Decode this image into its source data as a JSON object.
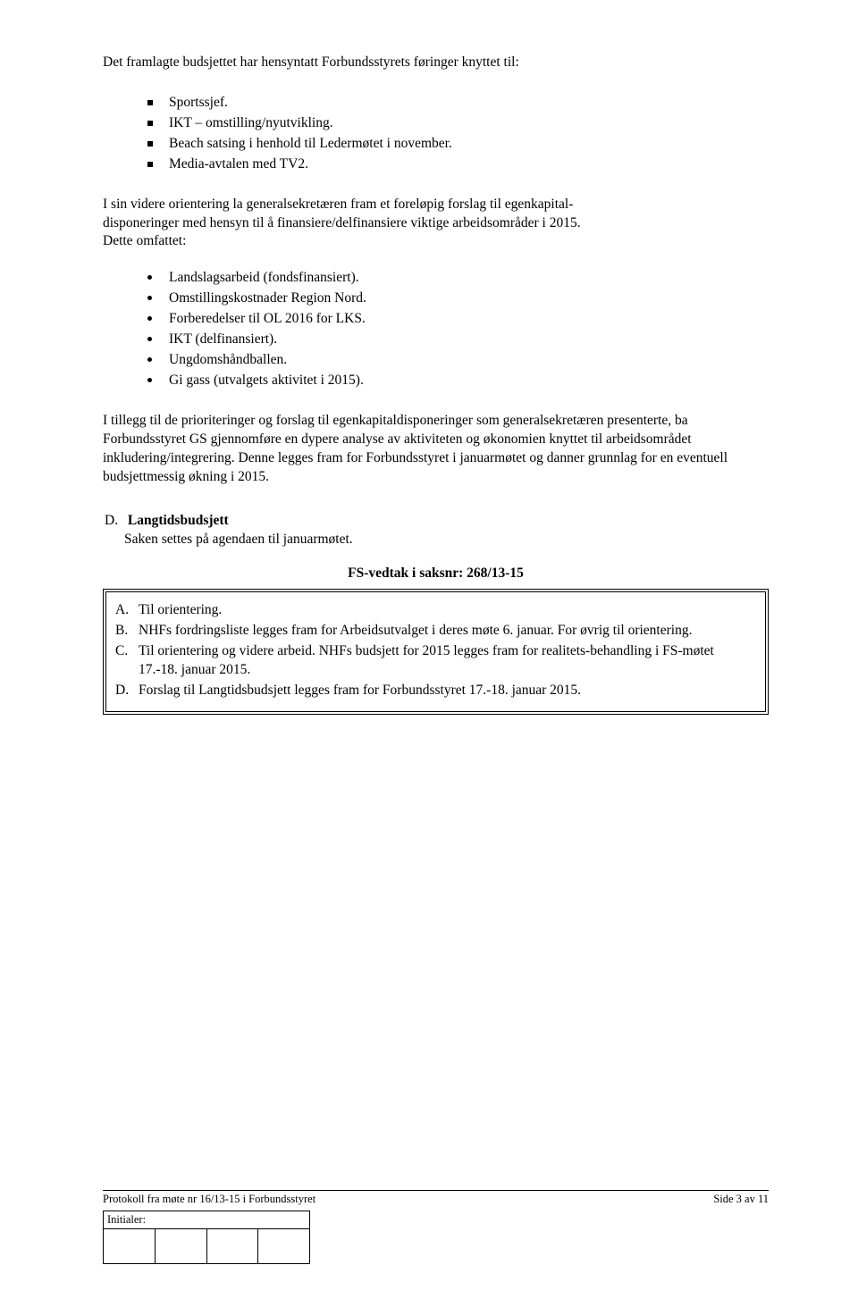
{
  "intro": "Det framlagte budsjettet har hensyntatt Forbundsstyrets føringer knyttet til:",
  "square_items": [
    "Sportssjef.",
    "IKT – omstilling/nyutvikling.",
    "Beach satsing i henhold til Ledermøtet i november.",
    "Media-avtalen med TV2."
  ],
  "para2a": "I sin videre orientering la generalsekretæren fram et foreløpig forslag til egenkapital-",
  "para2b": "disponeringer med hensyn til å finansiere/delfinansiere viktige arbeidsområder i 2015.",
  "para2c": "Dette omfattet:",
  "disc_items": [
    "Landslagsarbeid (fondsfinansiert).",
    "Omstillingskostnader Region Nord.",
    "Forberedelser til OL 2016 for LKS.",
    "IKT (delfinansiert).",
    "Ungdomshåndballen.",
    "Gi gass (utvalgets aktivitet i 2015)."
  ],
  "para3": "I tillegg til de prioriteringer og forslag til egenkapitaldisponeringer som generalsekretæren presenterte, ba Forbundsstyret GS gjennomføre en dypere analyse av aktiviteten og økonomien knyttet til arbeidsområdet inkludering/integrering. Denne legges fram for Forbundsstyret i januarmøtet og danner grunnlag for en eventuell budsjettmessig økning i 2015.",
  "sectionD": {
    "letter": "D.",
    "title": "Langtidsbudsjett",
    "body": "Saken settes på agendaen til januarmøtet."
  },
  "resolution_heading": "FS-vedtak i saksnr: 268/13-15",
  "resolution_items": [
    {
      "letter": "A.",
      "text": "Til orientering."
    },
    {
      "letter": "B.",
      "text": "NHFs fordringsliste legges fram for Arbeidsutvalget i deres møte 6. januar.  For øvrig til orientering."
    },
    {
      "letter": "C.",
      "text": "Til orientering og videre arbeid.  NHFs budsjett for 2015 legges fram for realitets-behandling i FS-møtet 17.-18. januar 2015."
    },
    {
      "letter": "D.",
      "text": "Forslag til Langtidsbudsjett legges fram for Forbundsstyret 17.-18. januar 2015."
    }
  ],
  "footer": {
    "left": "Protokoll fra møte nr 16/13-15 i Forbundsstyret",
    "right": "Side 3 av 11",
    "initials_label": "Initialer:"
  }
}
